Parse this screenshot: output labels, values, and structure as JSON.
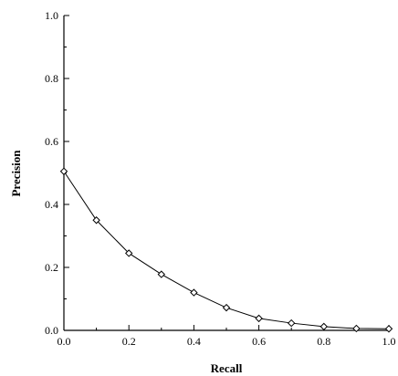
{
  "chart_data": {
    "type": "line",
    "xlabel": "Recall",
    "ylabel": "Precision",
    "xlim": [
      0,
      1
    ],
    "ylim": [
      0,
      1
    ],
    "x_ticks": [
      "0.0",
      "0.2",
      "0.4",
      "0.6",
      "0.8",
      "1.0"
    ],
    "y_ticks": [
      "0.0",
      "0.2",
      "0.4",
      "0.6",
      "0.8",
      "1.0"
    ],
    "grid": false,
    "series": [
      {
        "marker": "diamond",
        "x": [
          0.0,
          0.1,
          0.2,
          0.3,
          0.4,
          0.5,
          0.6,
          0.7,
          0.8,
          0.9,
          1.0
        ],
        "y": [
          0.505,
          0.35,
          0.245,
          0.178,
          0.12,
          0.072,
          0.038,
          0.023,
          0.012,
          0.006,
          0.005
        ]
      }
    ],
    "colors": {
      "line": "#000000",
      "marker_fill": "#ffffff"
    }
  }
}
